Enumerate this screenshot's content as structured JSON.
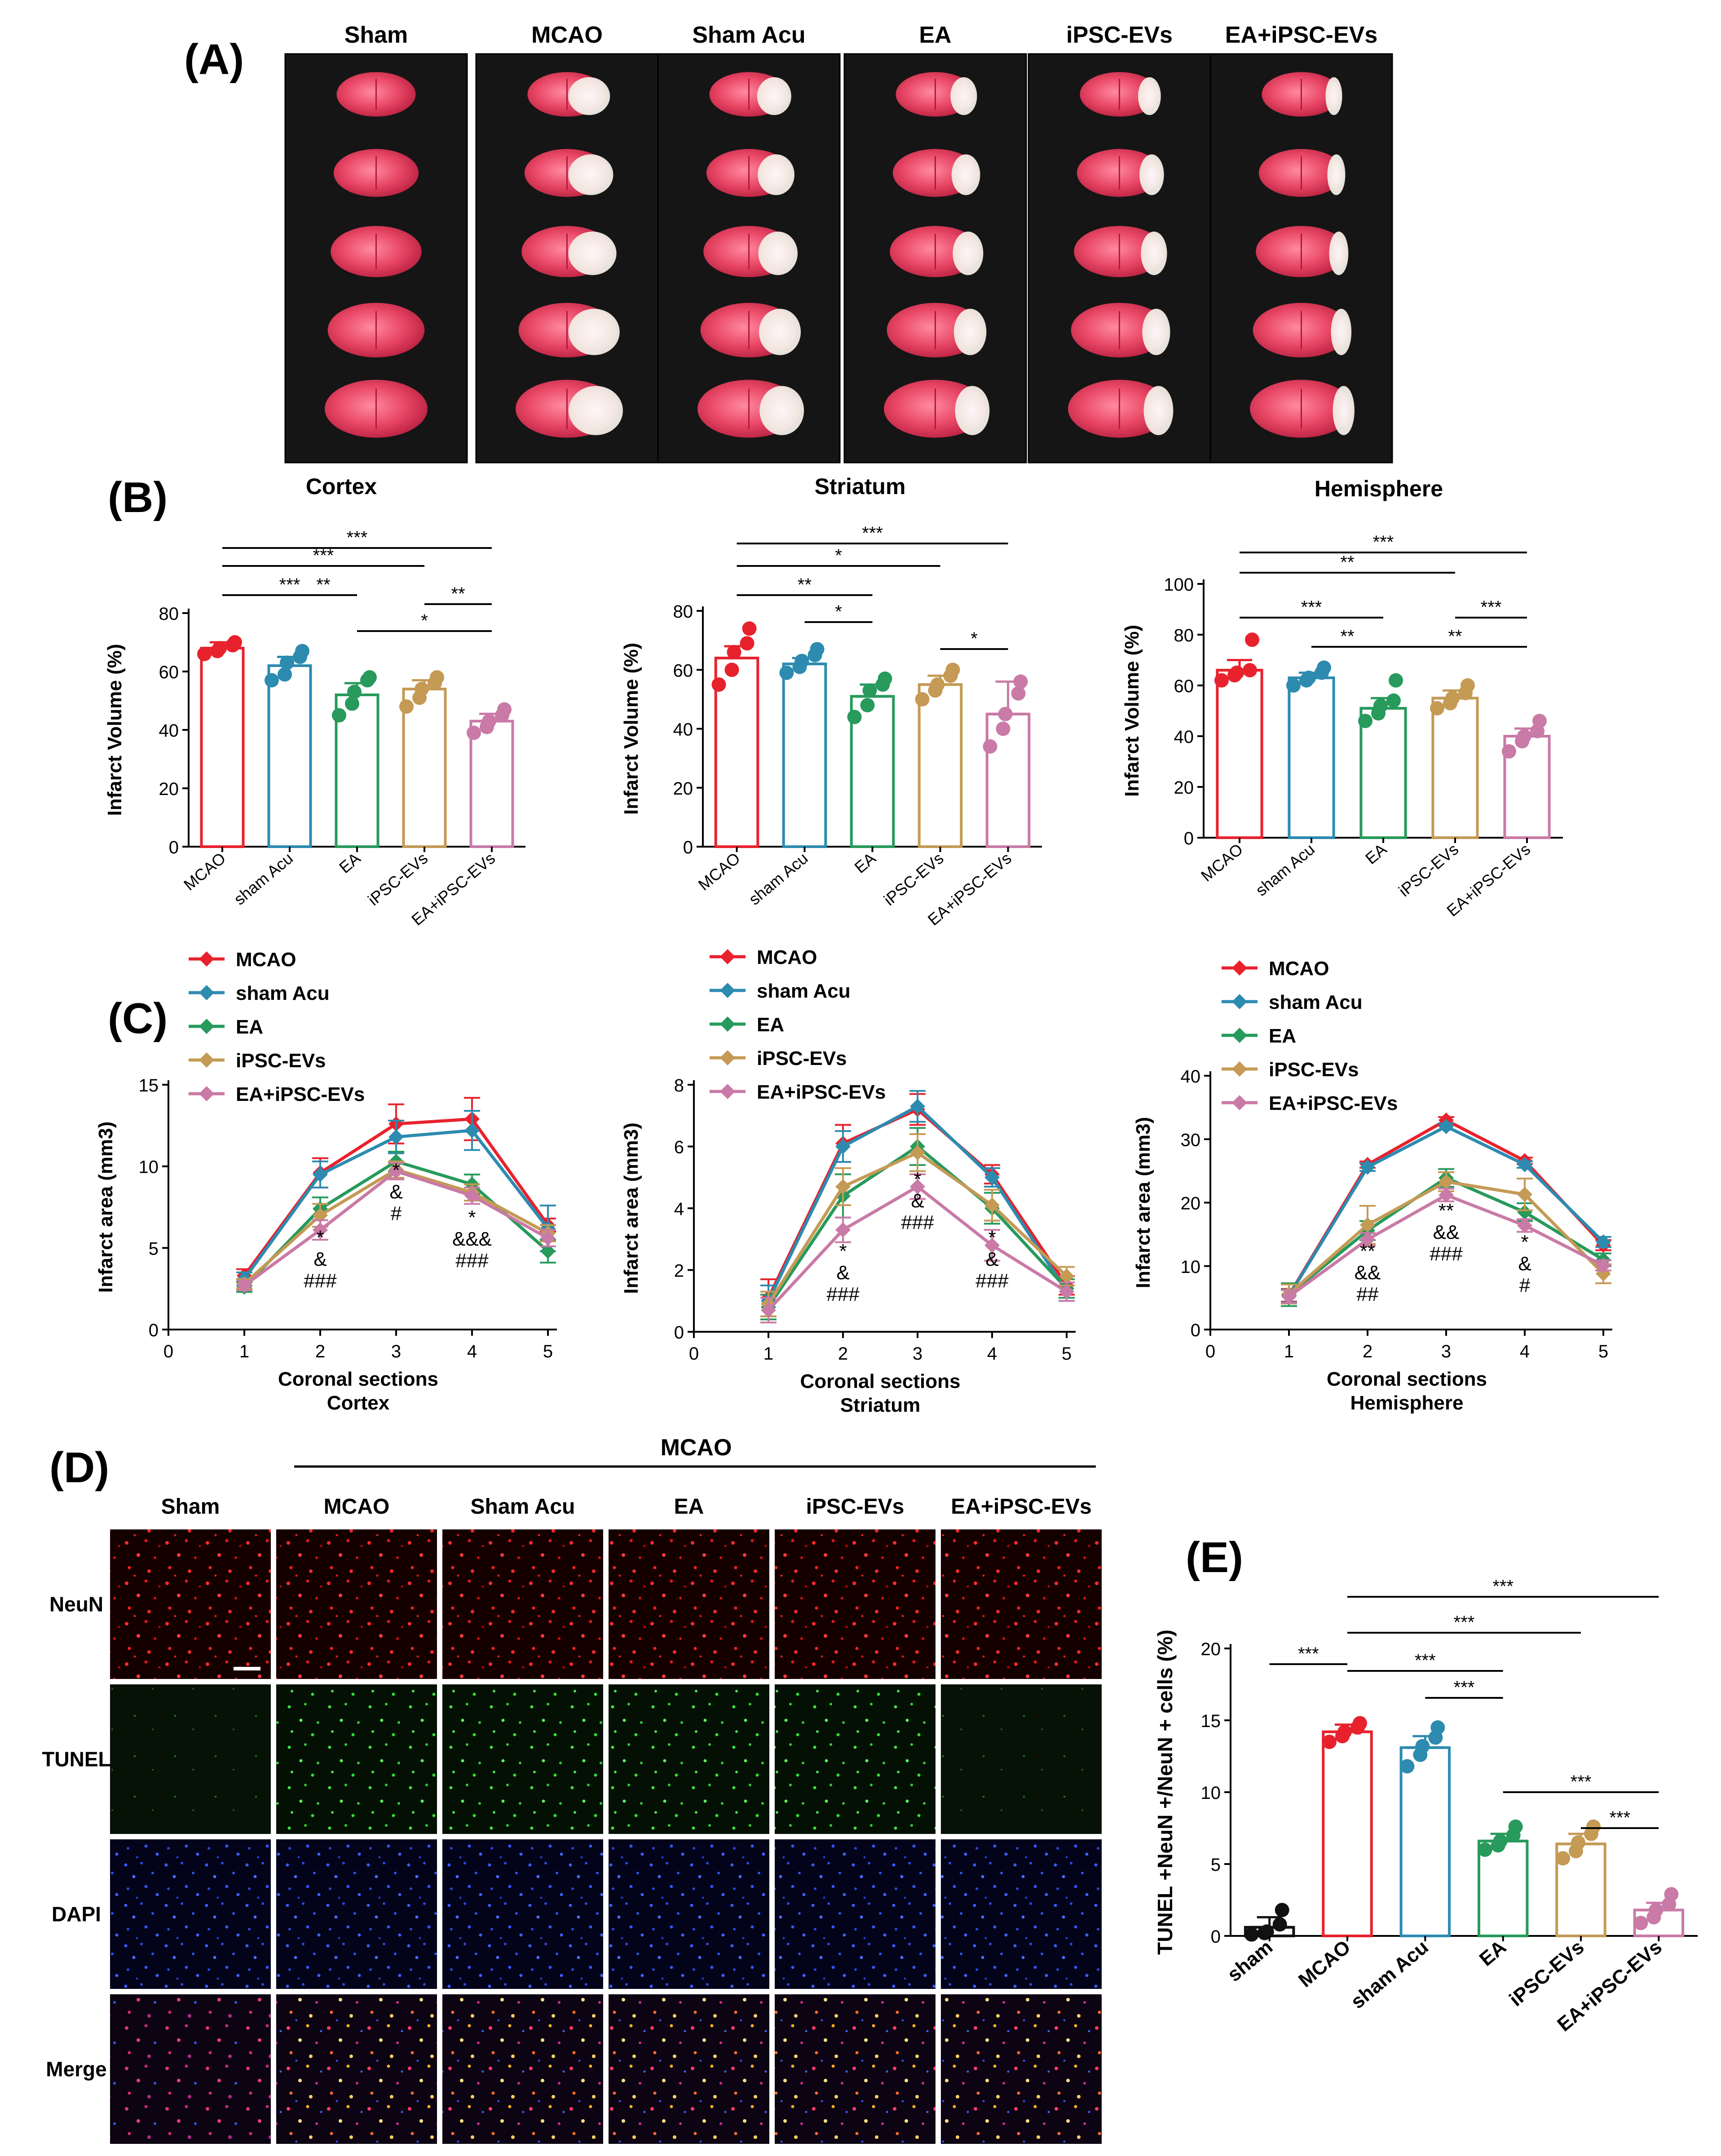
{
  "figure": {
    "panel_labels": {
      "A": "(A)",
      "B": "(B)",
      "C": "(C)",
      "D": "(D)",
      "E": "(E)"
    },
    "colors": {
      "MCAO": "#e8222d",
      "sham Acu": "#2d8bb0",
      "EA": "#279a5c",
      "iPSC-EVs": "#c49a55",
      "EA+iPSC-EVs": "#c97aa6",
      "sham": "#111111"
    }
  },
  "panel_a": {
    "columns": [
      "Sham",
      "MCAO",
      "Sham Acu",
      "EA",
      "iPSC-EVs",
      "EA+iPSC-EVs"
    ]
  },
  "panel_d": {
    "group_label": "MCAO",
    "columns": [
      "Sham",
      "MCAO",
      "Sham Acu",
      "EA",
      "iPSC-EVs",
      "EA+iPSC-EVs"
    ],
    "rows": [
      "NeuN",
      "TUNEL",
      "DAPI",
      "Merge"
    ]
  },
  "chart_data": [
    {
      "id": "b1",
      "type": "bar",
      "title": "Cortex",
      "xlabel": "",
      "ylabel": "Infarct Volume (%)",
      "ylim": [
        0,
        80
      ],
      "yticks": [
        0,
        20,
        40,
        60,
        80
      ],
      "categories": [
        "MCAO",
        "sham Acu",
        "EA",
        "iPSC-EVs",
        "EA+iPSC-EVs"
      ],
      "values": [
        68,
        62,
        52,
        54,
        43
      ],
      "errors": [
        2,
        3,
        4,
        3,
        2.5
      ],
      "points": [
        [
          66,
          67,
          68,
          69,
          70
        ],
        [
          57,
          59,
          63,
          65,
          67
        ],
        [
          45,
          49,
          53,
          57,
          58
        ],
        [
          48,
          51,
          54,
          56,
          58
        ],
        [
          39,
          41,
          43,
          45,
          47
        ]
      ],
      "significance": [
        {
          "from": 0,
          "to": 4,
          "label": "***"
        },
        {
          "from": 0,
          "to": 3,
          "label": "***"
        },
        {
          "from": 0,
          "to": 2,
          "label": "***"
        },
        {
          "from": 1,
          "to": 2,
          "label": "**"
        },
        {
          "from": 3,
          "to": 4,
          "label": "**"
        },
        {
          "from": 2,
          "to": 4,
          "label": "*"
        }
      ]
    },
    {
      "id": "b2",
      "type": "bar",
      "title": "Striatum",
      "xlabel": "",
      "ylabel": "Infarct Volume (%)",
      "ylim": [
        0,
        80
      ],
      "yticks": [
        0,
        20,
        40,
        60,
        80
      ],
      "categories": [
        "MCAO",
        "sham Acu",
        "EA",
        "iPSC-EVs",
        "EA+iPSC-EVs"
      ],
      "values": [
        64,
        62,
        51,
        55,
        45
      ],
      "errors": [
        4,
        2,
        4,
        3,
        11
      ],
      "points": [
        [
          55,
          60,
          66,
          69,
          74
        ],
        [
          59,
          61,
          63,
          65,
          67
        ],
        [
          44,
          48,
          53,
          55,
          57
        ],
        [
          50,
          53,
          55,
          58,
          60
        ],
        [
          34,
          40,
          45,
          52,
          56
        ]
      ],
      "significance": [
        {
          "from": 0,
          "to": 4,
          "label": "***"
        },
        {
          "from": 0,
          "to": 3,
          "label": "*"
        },
        {
          "from": 0,
          "to": 2,
          "label": "**"
        },
        {
          "from": 1,
          "to": 2,
          "label": "*"
        },
        {
          "from": 3,
          "to": 4,
          "label": "*"
        }
      ]
    },
    {
      "id": "b3",
      "type": "bar",
      "title": "Hemisphere",
      "xlabel": "",
      "ylabel": "Infarct Volume (%)",
      "ylim": [
        0,
        100
      ],
      "yticks": [
        0,
        20,
        40,
        60,
        80,
        100
      ],
      "categories": [
        "MCAO",
        "sham Acu",
        "EA",
        "iPSC-EVs",
        "EA+iPSC-EVs"
      ],
      "values": [
        66,
        63,
        51,
        55,
        40
      ],
      "errors": [
        4,
        2,
        4,
        3,
        3
      ],
      "points": [
        [
          62,
          64,
          65,
          66,
          78
        ],
        [
          60,
          62,
          63,
          65,
          67
        ],
        [
          46,
          49,
          52,
          54,
          62
        ],
        [
          51,
          53,
          55,
          57,
          60
        ],
        [
          34,
          38,
          40,
          42,
          46
        ]
      ],
      "significance": [
        {
          "from": 0,
          "to": 4,
          "label": "***"
        },
        {
          "from": 0,
          "to": 3,
          "label": "**"
        },
        {
          "from": 0,
          "to": 2,
          "label": "***"
        },
        {
          "from": 1,
          "to": 2,
          "label": "**"
        },
        {
          "from": 3,
          "to": 4,
          "label": "***"
        },
        {
          "from": 2,
          "to": 4,
          "label": "**"
        }
      ]
    },
    {
      "id": "c1",
      "type": "line",
      "subtitle": "Cortex",
      "xlabel": "Coronal sections",
      "ylabel": "Infarct area (mm3)",
      "xlim": [
        0,
        5
      ],
      "xticks": [
        0,
        1,
        2,
        3,
        4,
        5
      ],
      "ylim": [
        0,
        15
      ],
      "yticks": [
        0,
        5,
        10,
        15
      ],
      "legend": "top-left",
      "series": [
        {
          "name": "MCAO",
          "values": [
            3.3,
            9.6,
            12.6,
            12.9,
            6.4
          ],
          "errors": [
            0.4,
            0.9,
            1.2,
            1.3,
            0.4
          ]
        },
        {
          "name": "sham Acu",
          "values": [
            3.1,
            9.5,
            11.8,
            12.2,
            6.2
          ],
          "errors": [
            0.4,
            0.8,
            1.0,
            1.2,
            1.4
          ]
        },
        {
          "name": "EA",
          "values": [
            2.6,
            7.4,
            10.3,
            8.9,
            4.8
          ],
          "errors": [
            0.3,
            0.7,
            0.6,
            0.6,
            0.7
          ]
        },
        {
          "name": "iPSC-EVs",
          "values": [
            2.8,
            7.0,
            9.8,
            8.4,
            5.9
          ],
          "errors": [
            0.3,
            0.7,
            0.5,
            0.5,
            0.5
          ]
        },
        {
          "name": "EA+iPSC-EVs",
          "values": [
            2.7,
            6.1,
            9.7,
            8.2,
            5.6
          ],
          "errors": [
            0.3,
            0.6,
            0.5,
            0.5,
            0.5
          ]
        }
      ],
      "annotations": [
        {
          "x": 2,
          "lines": [
            "*",
            "&",
            "###"
          ]
        },
        {
          "x": 3,
          "lines": [
            "*",
            "&",
            "#"
          ]
        },
        {
          "x": 4,
          "lines": [
            "*",
            "&&&",
            "###"
          ]
        }
      ]
    },
    {
      "id": "c2",
      "type": "line",
      "subtitle": "Striatum",
      "xlabel": "Coronal sections",
      "ylabel": "Infarct area (mm3)",
      "xlim": [
        0,
        5
      ],
      "xticks": [
        0,
        1,
        2,
        3,
        4,
        5
      ],
      "ylim": [
        0,
        8
      ],
      "yticks": [
        0,
        2,
        4,
        6,
        8
      ],
      "legend": "top-left",
      "series": [
        {
          "name": "MCAO",
          "values": [
            1.1,
            6.1,
            7.2,
            5.1,
            1.5
          ],
          "errors": [
            0.6,
            0.6,
            0.5,
            0.3,
            0.3
          ]
        },
        {
          "name": "sham Acu",
          "values": [
            1.0,
            6.0,
            7.3,
            5.0,
            1.3
          ],
          "errors": [
            0.5,
            0.5,
            0.5,
            0.3,
            0.3
          ]
        },
        {
          "name": "EA",
          "values": [
            0.8,
            4.4,
            6.0,
            4.0,
            1.4
          ],
          "errors": [
            0.4,
            0.7,
            0.6,
            0.5,
            0.3
          ]
        },
        {
          "name": "iPSC-EVs",
          "values": [
            0.9,
            4.7,
            5.8,
            4.1,
            1.8
          ],
          "errors": [
            0.4,
            0.6,
            0.6,
            0.5,
            0.3
          ]
        },
        {
          "name": "EA+iPSC-EVs",
          "values": [
            0.7,
            3.3,
            4.7,
            2.8,
            1.3
          ],
          "errors": [
            0.4,
            0.4,
            0.4,
            0.5,
            0.3
          ]
        }
      ],
      "annotations": [
        {
          "x": 2,
          "lines": [
            "*",
            "&",
            "###"
          ]
        },
        {
          "x": 3,
          "lines": [
            "*",
            "&",
            "###"
          ]
        },
        {
          "x": 4,
          "lines": [
            "*",
            "&",
            "###"
          ]
        }
      ]
    },
    {
      "id": "c3",
      "type": "line",
      "subtitle": "Hemisphere",
      "xlabel": "Coronal sections",
      "ylabel": "Infarct area (mm3)",
      "xlim": [
        0,
        5
      ],
      "xticks": [
        0,
        1,
        2,
        3,
        4,
        5
      ],
      "ylim": [
        0,
        40
      ],
      "yticks": [
        0,
        10,
        20,
        30,
        40
      ],
      "legend": "top-left",
      "series": [
        {
          "name": "MCAO",
          "values": [
            5.4,
            26.0,
            33.0,
            26.6,
            13.3
          ],
          "errors": [
            1.0,
            0.5,
            0.5,
            0.5,
            0.8
          ]
        },
        {
          "name": "sham Acu",
          "values": [
            5.3,
            25.6,
            32.0,
            26.0,
            13.8
          ],
          "errors": [
            1.0,
            0.6,
            0.5,
            0.5,
            0.8
          ]
        },
        {
          "name": "EA",
          "values": [
            5.5,
            15.6,
            23.9,
            18.5,
            11.0
          ],
          "errors": [
            1.8,
            1.5,
            1.4,
            1.4,
            1.0
          ]
        },
        {
          "name": "iPSC-EVs",
          "values": [
            5.6,
            16.5,
            23.3,
            21.3,
            8.8
          ],
          "errors": [
            1.5,
            3.0,
            1.5,
            2.5,
            1.5
          ]
        },
        {
          "name": "EA+iPSC-EVs",
          "values": [
            5.2,
            14.2,
            21.2,
            16.4,
            10.1
          ],
          "errors": [
            1.0,
            1.0,
            1.0,
            1.0,
            0.8
          ]
        }
      ],
      "annotations": [
        {
          "x": 2,
          "lines": [
            "**",
            "&&",
            "##"
          ]
        },
        {
          "x": 3,
          "lines": [
            "**",
            "&&",
            "###"
          ]
        },
        {
          "x": 4,
          "lines": [
            "*",
            "&",
            "#"
          ]
        }
      ]
    },
    {
      "id": "e",
      "type": "bar",
      "title": "",
      "xlabel": "",
      "ylabel": "TUNEL +NeuN +/NeuN + cells (%)",
      "ylim": [
        0,
        20
      ],
      "yticks": [
        0,
        5,
        10,
        15,
        20
      ],
      "categories": [
        "sham",
        "MCAO",
        "sham Acu",
        "EA",
        "iPSC-EVs",
        "EA+iPSC-EVs"
      ],
      "values": [
        0.6,
        14.2,
        13.1,
        6.6,
        6.4,
        1.8
      ],
      "errors": [
        0.7,
        0.5,
        0.8,
        0.5,
        0.7,
        0.5
      ],
      "points": [
        [
          0.1,
          0.2,
          0.3,
          0.8,
          1.8
        ],
        [
          13.5,
          13.9,
          14.2,
          14.5,
          14.8
        ],
        [
          11.8,
          12.6,
          13.2,
          13.8,
          14.5
        ],
        [
          6.0,
          6.3,
          6.6,
          7.0,
          7.6
        ],
        [
          5.4,
          5.9,
          6.5,
          7.1,
          7.6
        ],
        [
          0.9,
          1.3,
          1.8,
          2.2,
          2.9
        ]
      ],
      "significance": [
        {
          "from": 1,
          "to": 5,
          "label": "***"
        },
        {
          "from": 1,
          "to": 4,
          "label": "***"
        },
        {
          "from": 0,
          "to": 1,
          "label": "***"
        },
        {
          "from": 1,
          "to": 3,
          "label": "***"
        },
        {
          "from": 2,
          "to": 3,
          "label": "***"
        },
        {
          "from": 3,
          "to": 5,
          "label": "***"
        },
        {
          "from": 4,
          "to": 5,
          "label": "***"
        }
      ]
    }
  ]
}
